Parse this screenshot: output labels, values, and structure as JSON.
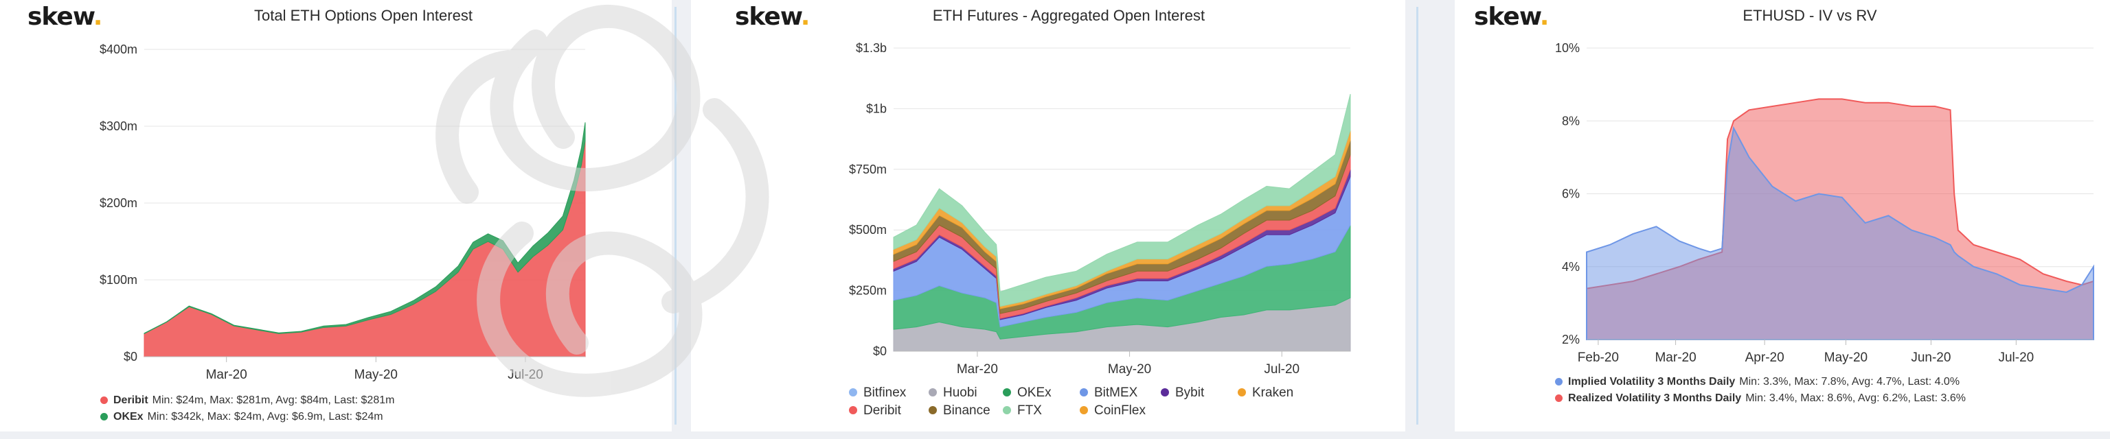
{
  "panels": [
    {
      "logo": "skew",
      "title": "Total ETH Options Open Interest",
      "legend": [
        {
          "name": "Deribit",
          "stats": "Min: $24m, Max: $281m, Avg: $84m, Last: $281m",
          "color": "#f05a5a"
        },
        {
          "name": "OKEx",
          "stats": "Min: $342k, Max: $24m, Avg: $6.9m, Last: $24m",
          "color": "#2a9d5a"
        }
      ]
    },
    {
      "logo": "skew",
      "title": "ETH Futures - Aggregated Open Interest",
      "legend": [
        {
          "name": "Bitfinex",
          "color": "#8fb6f0"
        },
        {
          "name": "Huobi",
          "color": "#a9a9b5"
        },
        {
          "name": "OKEx",
          "color": "#2a9d5a"
        },
        {
          "name": "BitMEX",
          "color": "#6e96e6"
        },
        {
          "name": "Bybit",
          "color": "#5b2c9a"
        },
        {
          "name": "Kraken",
          "color": "#f0a02a"
        },
        {
          "name": "Deribit",
          "color": "#f05a5a"
        },
        {
          "name": "Binance",
          "color": "#8a6a2a"
        },
        {
          "name": "FTX",
          "color": "#8fd4a8"
        },
        {
          "name": "CoinFlex",
          "color": "#f0a02a"
        }
      ]
    },
    {
      "logo": "skew",
      "title": "ETHUSD - IV vs RV",
      "legend": [
        {
          "name": "Implied Volatility 3 Months Daily",
          "stats": "Min: 3.3%, Max: 7.8%, Avg: 4.7%, Last: 4.0%",
          "color": "#6e96e6"
        },
        {
          "name": "Realized Volatility 3 Months Daily",
          "stats": "Min: 3.4%, Max: 8.6%, Avg: 6.2%, Last: 3.6%",
          "color": "#f05a5a"
        }
      ]
    }
  ],
  "chart_data": [
    {
      "type": "area",
      "title": "Total ETH Options Open Interest",
      "y_ticks": [
        "$0",
        "$100m",
        "$200m",
        "$300m",
        "$400m"
      ],
      "ylim": [
        0,
        400
      ],
      "y_unit": "$m",
      "x_ticks": [
        "Mar-20",
        "May-20",
        "Jul-20"
      ],
      "x_tick_pos": [
        1.1,
        3.1,
        5.1
      ],
      "xlim": [
        0,
        5.9
      ],
      "stacked": true,
      "x": [
        0,
        0.3,
        0.6,
        0.9,
        1.2,
        1.5,
        1.8,
        2.1,
        2.4,
        2.7,
        3.0,
        3.3,
        3.6,
        3.9,
        4.2,
        4.4,
        4.6,
        4.8,
        5.0,
        5.2,
        5.4,
        5.6,
        5.75,
        5.85,
        5.9
      ],
      "series": [
        {
          "name": "Deribit",
          "color": "#f05a5a",
          "values": [
            30,
            45,
            65,
            55,
            40,
            35,
            30,
            32,
            38,
            40,
            48,
            55,
            68,
            85,
            110,
            140,
            150,
            140,
            110,
            130,
            145,
            165,
            210,
            250,
            281
          ]
        },
        {
          "name": "OKEx",
          "color": "#2a9d5a",
          "values": [
            0.5,
            0.5,
            1,
            1,
            1,
            1,
            1,
            1,
            2,
            2,
            3,
            4,
            5,
            6,
            8,
            9,
            10,
            11,
            12,
            14,
            16,
            18,
            20,
            22,
            24
          ]
        }
      ]
    },
    {
      "type": "area",
      "title": "ETH Futures - Aggregated Open Interest",
      "y_ticks": [
        "$0",
        "$250m",
        "$500m",
        "$750m",
        "$1b",
        "$1.3b"
      ],
      "ylim": [
        0,
        1.25
      ],
      "y_unit": "$b",
      "x_ticks": [
        "Mar-20",
        "May-20",
        "Jul-20"
      ],
      "x_tick_pos": [
        1.1,
        3.1,
        5.1
      ],
      "xlim": [
        0,
        6.0
      ],
      "stacked": true,
      "x": [
        0,
        0.3,
        0.6,
        0.9,
        1.2,
        1.35,
        1.4,
        1.7,
        2.0,
        2.4,
        2.8,
        3.2,
        3.6,
        4.0,
        4.3,
        4.6,
        4.9,
        5.2,
        5.5,
        5.8,
        6.0
      ],
      "series": [
        {
          "name": "Huobi",
          "color": "#b2b2bc",
          "values": [
            0.09,
            0.1,
            0.12,
            0.1,
            0.09,
            0.08,
            0.05,
            0.06,
            0.07,
            0.08,
            0.1,
            0.11,
            0.1,
            0.12,
            0.14,
            0.15,
            0.17,
            0.17,
            0.18,
            0.19,
            0.22
          ]
        },
        {
          "name": "OKEx",
          "color": "#3fb476",
          "values": [
            0.12,
            0.13,
            0.15,
            0.14,
            0.13,
            0.12,
            0.05,
            0.06,
            0.07,
            0.08,
            0.1,
            0.11,
            0.11,
            0.13,
            0.14,
            0.16,
            0.18,
            0.19,
            0.2,
            0.22,
            0.3
          ]
        },
        {
          "name": "BitMEX",
          "color": "#7a9ef0",
          "values": [
            0.12,
            0.14,
            0.2,
            0.18,
            0.12,
            0.1,
            0.03,
            0.03,
            0.04,
            0.05,
            0.06,
            0.07,
            0.08,
            0.09,
            0.1,
            0.12,
            0.13,
            0.12,
            0.14,
            0.16,
            0.2
          ]
        },
        {
          "name": "Bybit",
          "color": "#5b2c9a",
          "values": [
            0.01,
            0.01,
            0.01,
            0.01,
            0.01,
            0.01,
            0.005,
            0.005,
            0.005,
            0.01,
            0.01,
            0.01,
            0.01,
            0.01,
            0.015,
            0.015,
            0.02,
            0.02,
            0.02,
            0.02,
            0.03
          ]
        },
        {
          "name": "Deribit",
          "color": "#f05a5a",
          "values": [
            0.03,
            0.03,
            0.04,
            0.04,
            0.03,
            0.03,
            0.02,
            0.02,
            0.02,
            0.02,
            0.02,
            0.03,
            0.03,
            0.03,
            0.03,
            0.04,
            0.04,
            0.04,
            0.04,
            0.05,
            0.06
          ]
        },
        {
          "name": "Binance",
          "color": "#8a6a2a",
          "values": [
            0.03,
            0.03,
            0.04,
            0.04,
            0.03,
            0.03,
            0.02,
            0.02,
            0.02,
            0.02,
            0.03,
            0.03,
            0.03,
            0.04,
            0.04,
            0.04,
            0.04,
            0.04,
            0.05,
            0.05,
            0.06
          ]
        },
        {
          "name": "Kraken",
          "color": "#f0a02a",
          "values": [
            0.02,
            0.02,
            0.03,
            0.02,
            0.02,
            0.02,
            0.01,
            0.01,
            0.01,
            0.01,
            0.01,
            0.02,
            0.02,
            0.02,
            0.02,
            0.02,
            0.02,
            0.02,
            0.03,
            0.03,
            0.04
          ]
        },
        {
          "name": "FTX",
          "color": "#94d8ae",
          "values": [
            0.05,
            0.06,
            0.08,
            0.07,
            0.06,
            0.05,
            0.06,
            0.07,
            0.07,
            0.06,
            0.07,
            0.07,
            0.07,
            0.08,
            0.08,
            0.08,
            0.08,
            0.07,
            0.08,
            0.09,
            0.15
          ]
        }
      ]
    },
    {
      "type": "area",
      "title": "ETHUSD - IV vs RV",
      "y_ticks": [
        "2%",
        "4%",
        "6%",
        "8%",
        "10%"
      ],
      "ylim": [
        2,
        10
      ],
      "y_unit": "%",
      "x_ticks": [
        "Feb-20",
        "Mar-20",
        "Apr-20",
        "May-20",
        "Jun-20",
        "Jul-20"
      ],
      "x_tick_pos": [
        0.15,
        1.15,
        2.3,
        3.35,
        4.45,
        5.55
      ],
      "xlim": [
        0,
        6.55
      ],
      "stacked": false,
      "x": [
        0,
        0.3,
        0.6,
        0.9,
        1.2,
        1.45,
        1.6,
        1.75,
        1.82,
        1.9,
        2.1,
        2.4,
        2.7,
        3.0,
        3.3,
        3.6,
        3.9,
        4.2,
        4.5,
        4.7,
        4.75,
        4.8,
        5.0,
        5.3,
        5.6,
        5.9,
        6.2,
        6.4,
        6.55
      ],
      "series": [
        {
          "name": "Realized Volatility 3 Months Daily",
          "color": "#f05a5a",
          "values": [
            3.4,
            3.5,
            3.6,
            3.8,
            4.0,
            4.2,
            4.3,
            4.4,
            7.5,
            8.0,
            8.3,
            8.4,
            8.5,
            8.6,
            8.6,
            8.5,
            8.5,
            8.4,
            8.4,
            8.3,
            6.0,
            5.0,
            4.6,
            4.4,
            4.2,
            3.8,
            3.6,
            3.5,
            3.6
          ]
        },
        {
          "name": "Implied Volatility 3 Months Daily",
          "color": "#6e96e6",
          "values": [
            4.4,
            4.6,
            4.9,
            5.1,
            4.7,
            4.5,
            4.4,
            4.5,
            6.8,
            7.8,
            7.0,
            6.2,
            5.8,
            6.0,
            5.9,
            5.2,
            5.4,
            5.0,
            4.8,
            4.6,
            4.4,
            4.3,
            4.0,
            3.8,
            3.5,
            3.4,
            3.3,
            3.5,
            4.0
          ]
        }
      ]
    }
  ]
}
